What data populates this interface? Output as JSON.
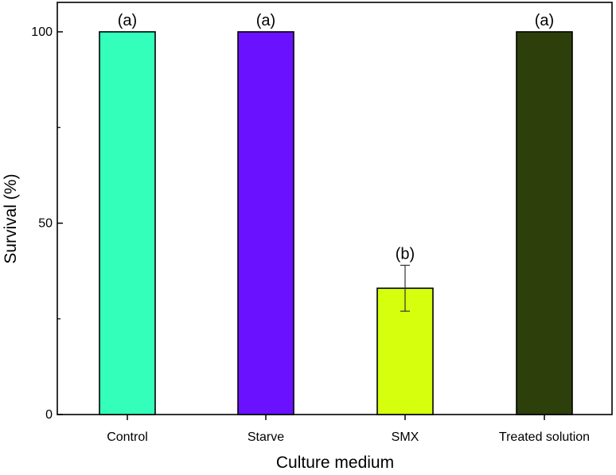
{
  "chart_data": {
    "type": "bar",
    "title": "",
    "xlabel": "Culture medium",
    "ylabel": "Survival (%)",
    "ylim": [
      0,
      108
    ],
    "yticks": [
      0,
      50,
      100
    ],
    "ytick_labels": [
      "0",
      "50",
      "100"
    ],
    "categories": [
      "Control",
      "Starve",
      "SMX",
      "Treated solution"
    ],
    "values": [
      100,
      100,
      33,
      100
    ],
    "errors": [
      0,
      0,
      6,
      0
    ],
    "significance": [
      "(a)",
      "(a)",
      "(b)",
      "(a)"
    ],
    "colors": [
      "#33ffbb",
      "#6a11ff",
      "#d5ff0d",
      "#2d3f0a"
    ],
    "grid": false,
    "legend": "none"
  }
}
